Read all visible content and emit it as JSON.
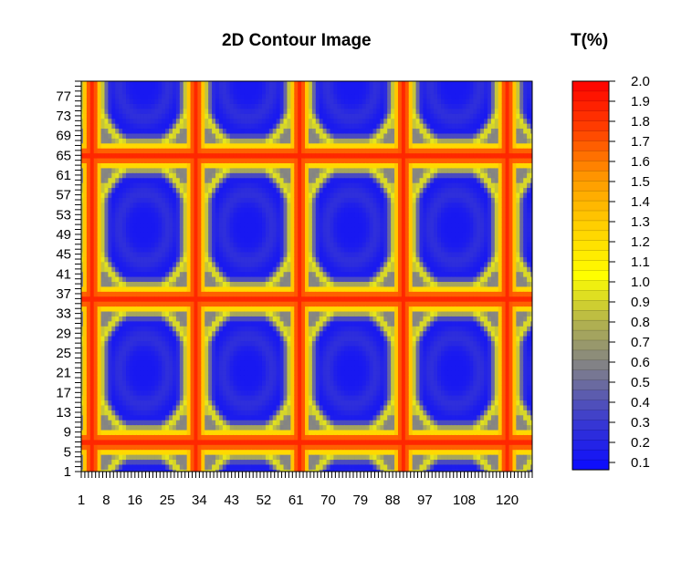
{
  "chart_data": {
    "type": "heatmap",
    "title": "2D Contour Image",
    "colorbar_title": "T(%)",
    "x_range": [
      1,
      127
    ],
    "y_range": [
      1,
      80
    ],
    "x_tick_labels": [
      "1",
      "8",
      "16",
      "25",
      "34",
      "43",
      "52",
      "61",
      "70",
      "79",
      "88",
      "97",
      "108",
      "120"
    ],
    "x_tick_values": [
      1,
      8,
      16,
      25,
      34,
      43,
      52,
      61,
      70,
      79,
      88,
      97,
      108,
      120
    ],
    "y_tick_labels": [
      "1",
      "5",
      "9",
      "13",
      "17",
      "21",
      "25",
      "29",
      "33",
      "37",
      "41",
      "45",
      "49",
      "53",
      "57",
      "61",
      "65",
      "69",
      "73",
      "77"
    ],
    "y_tick_values": [
      1,
      5,
      9,
      13,
      17,
      21,
      25,
      29,
      33,
      37,
      41,
      45,
      49,
      53,
      57,
      61,
      65,
      69,
      73,
      77
    ],
    "vertical_ridges_x": [
      4,
      33,
      62,
      91,
      120
    ],
    "horizontal_ridges_y": [
      7,
      36,
      65
    ],
    "colorbar_levels": [
      "2.0",
      "1.9",
      "1.8",
      "1.7",
      "1.6",
      "1.5",
      "1.4",
      "1.3",
      "1.2",
      "1.1",
      "1.0",
      "0.9",
      "0.8",
      "0.7",
      "0.6",
      "0.5",
      "0.4",
      "0.3",
      "0.2",
      "0.1"
    ],
    "colorbar_range": [
      0.05,
      2.0
    ],
    "color_scale": [
      "#0a0aff",
      "#3a3ad0",
      "#7a7a90",
      "#b0b050",
      "#ffff00",
      "#ffd000",
      "#ff9900",
      "#ff4000",
      "#ff0000"
    ]
  }
}
